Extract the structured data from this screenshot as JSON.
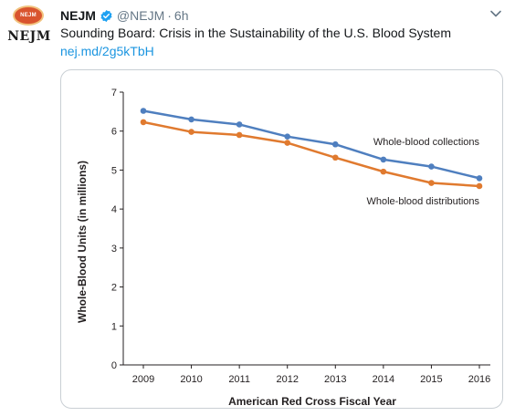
{
  "tweet": {
    "avatar_badge": "NEJM",
    "avatar_text": "NEJM",
    "name": "NEJM",
    "handle": "@NEJM",
    "time": "6h",
    "separator": "·",
    "text": "Sounding Board: Crisis in the Sustainability of the U.S. Blood System",
    "link": "nej.md/2g5kTbH"
  },
  "icons": {
    "verified": "verified-badge-icon",
    "more": "chevron-down-icon"
  },
  "colors": {
    "verified": "#1da1f2",
    "link": "#1b95e0",
    "collections": "#4f7fbf",
    "distributions": "#e07a2f"
  },
  "chart_data": {
    "type": "line",
    "x": [
      "2009",
      "2010",
      "2011",
      "2012",
      "2013",
      "2014",
      "2015",
      "2016"
    ],
    "series": [
      {
        "name": "Whole-blood collections",
        "values": [
          6.52,
          6.3,
          6.17,
          5.86,
          5.66,
          5.27,
          5.09,
          4.79
        ]
      },
      {
        "name": "Whole-blood distributions",
        "values": [
          6.23,
          5.98,
          5.9,
          5.7,
          5.32,
          4.96,
          4.67,
          4.59
        ]
      }
    ],
    "yticks": [
      "0",
      "1",
      "2",
      "3",
      "4",
      "5",
      "6",
      "7"
    ],
    "ylim": [
      0,
      7
    ],
    "xlabel": "American Red Cross Fiscal Year",
    "ylabel": "Whole-Blood Units (in millions)",
    "grid": false
  }
}
